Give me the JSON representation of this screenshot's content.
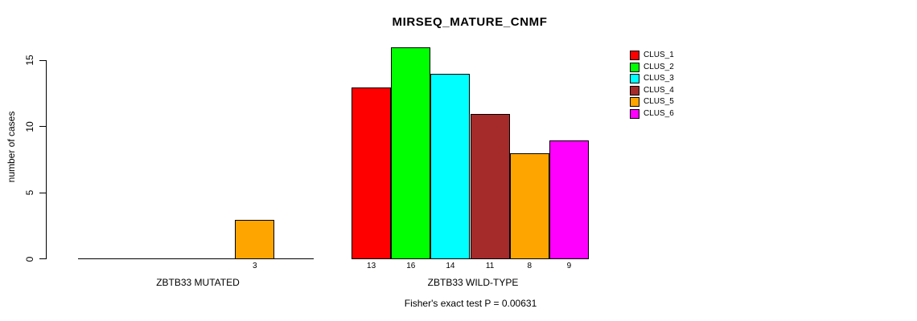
{
  "title": "MIRSEQ_MATURE_CNMF",
  "y_axis": {
    "label": "number of cases",
    "tick_labels": [
      "0",
      "5",
      "10",
      "15"
    ]
  },
  "footnote": "Fisher's exact test P = 0.00631",
  "chart_data": {
    "type": "bar",
    "title": "MIRSEQ_MATURE_CNMF",
    "xlabel": "",
    "ylabel": "number of cases",
    "ylim": [
      0,
      16
    ],
    "yticks": [
      0,
      5,
      10,
      15
    ],
    "grid": false,
    "legend_position": "top-right",
    "series_names": [
      "CLUS_1",
      "CLUS_2",
      "CLUS_3",
      "CLUS_4",
      "CLUS_5",
      "CLUS_6"
    ],
    "series_colors": [
      "#FF0000",
      "#00FF00",
      "#00FFFF",
      "#A52A2A",
      "#FFA500",
      "#FF00FF"
    ],
    "groups": [
      {
        "label": "ZBTB33 MUTATED",
        "values": [
          0,
          0,
          0,
          0,
          3,
          0
        ]
      },
      {
        "label": "ZBTB33 WILD-TYPE",
        "values": [
          13,
          16,
          14,
          11,
          8,
          9
        ]
      }
    ],
    "bar_value_labels": [
      "3",
      "13",
      "16",
      "14",
      "11",
      "8",
      "9"
    ],
    "annotation": "Fisher's exact test P = 0.00631"
  }
}
